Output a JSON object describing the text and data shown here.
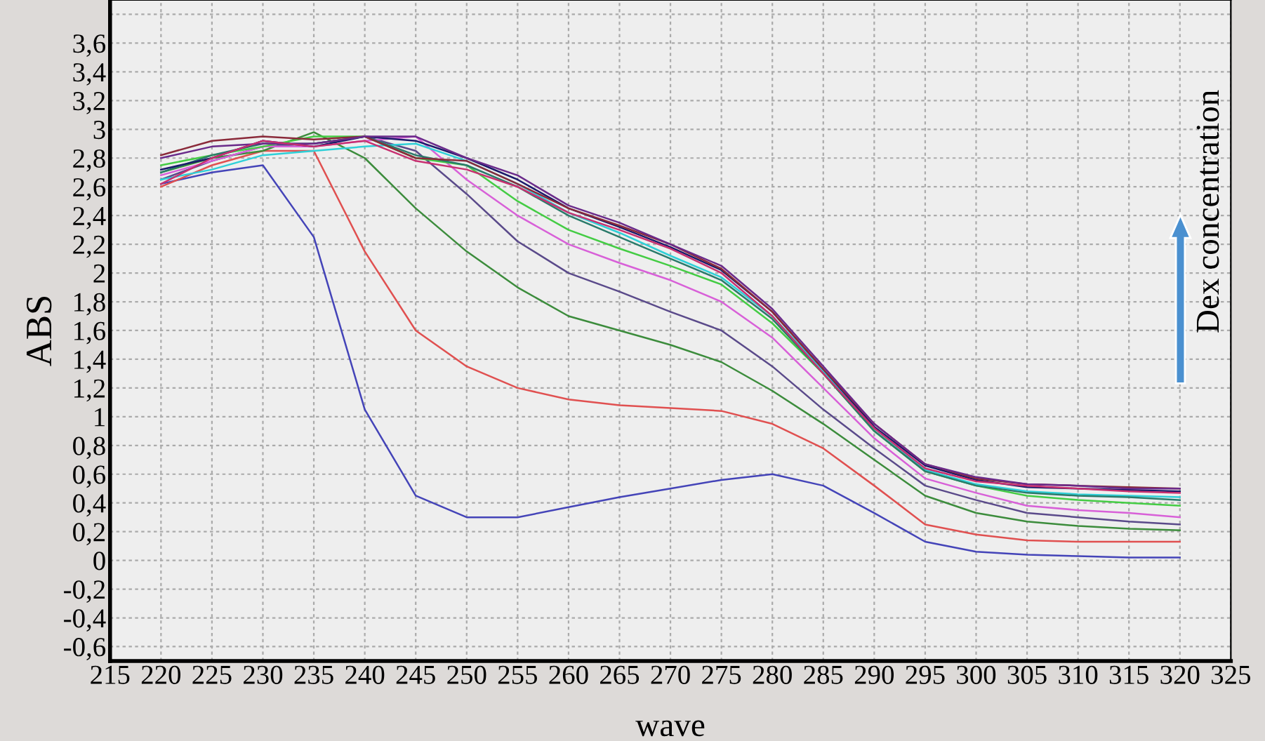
{
  "chart_data": {
    "type": "line",
    "xlabel": "wave",
    "ylabel": "ABS",
    "annotations": [
      "Dex concentration"
    ],
    "x": [
      220,
      225,
      230,
      235,
      240,
      245,
      250,
      255,
      260,
      265,
      270,
      275,
      280,
      285,
      290,
      295,
      300,
      305,
      310,
      315,
      320
    ],
    "xlim": [
      215,
      325
    ],
    "xticks": [
      215,
      220,
      225,
      230,
      235,
      240,
      245,
      250,
      255,
      260,
      265,
      270,
      275,
      280,
      285,
      290,
      295,
      300,
      305,
      310,
      315,
      320,
      325
    ],
    "ylim": [
      -0.7,
      3.9
    ],
    "yticks": [
      {
        "value": -0.6,
        "label": "-0,6"
      },
      {
        "value": -0.4,
        "label": "-0,4"
      },
      {
        "value": -0.2,
        "label": "-0,2"
      },
      0,
      {
        "value": 0.2,
        "label": "0,2"
      },
      {
        "value": 0.4,
        "label": "0,4"
      },
      {
        "value": 0.6,
        "label": "0,6"
      },
      {
        "value": 0.8,
        "label": "0,8"
      },
      1,
      {
        "value": 1.2,
        "label": "1,2"
      },
      {
        "value": 1.4,
        "label": "1,4"
      },
      {
        "value": 1.6,
        "label": "1,6"
      },
      {
        "value": 1.8,
        "label": "1,8"
      },
      2,
      {
        "value": 2.2,
        "label": "2,2"
      },
      {
        "value": 2.4,
        "label": "2,4"
      },
      {
        "value": 2.6,
        "label": "2,6"
      },
      {
        "value": 2.8,
        "label": "2,8"
      },
      3,
      {
        "value": 3.2,
        "label": "3,2"
      },
      {
        "value": 3.4,
        "label": "3,4"
      },
      {
        "value": 3.6,
        "label": "3,6"
      },
      {
        "value": 3.8,
        "label": null
      }
    ],
    "grid": true,
    "line_style": "solid",
    "marker": "none",
    "legend": false,
    "series": [
      {
        "color": "#4444b8",
        "values": [
          2.62,
          2.7,
          2.75,
          2.25,
          1.05,
          0.45,
          0.3,
          0.3,
          0.37,
          0.44,
          0.5,
          0.56,
          0.6,
          0.52,
          0.33,
          0.13,
          0.06,
          0.04,
          0.03,
          0.02,
          0.02
        ]
      },
      {
        "color": "#e05050",
        "values": [
          2.6,
          2.75,
          2.85,
          2.85,
          2.15,
          1.6,
          1.35,
          1.2,
          1.12,
          1.08,
          1.06,
          1.04,
          0.95,
          0.78,
          0.52,
          0.25,
          0.18,
          0.14,
          0.13,
          0.13,
          0.13
        ]
      },
      {
        "color": "#3c8c3c",
        "values": [
          2.7,
          2.8,
          2.85,
          2.98,
          2.8,
          2.45,
          2.15,
          1.9,
          1.7,
          1.6,
          1.5,
          1.38,
          1.18,
          0.95,
          0.7,
          0.45,
          0.33,
          0.27,
          0.24,
          0.22,
          0.21
        ]
      },
      {
        "color": "#5a4a8a",
        "values": [
          2.65,
          2.78,
          2.88,
          2.9,
          2.95,
          2.85,
          2.55,
          2.22,
          2.0,
          1.87,
          1.73,
          1.6,
          1.35,
          1.05,
          0.78,
          0.52,
          0.42,
          0.33,
          0.3,
          0.27,
          0.25
        ]
      },
      {
        "color": "#d860d8",
        "values": [
          2.68,
          2.78,
          2.88,
          2.88,
          2.92,
          2.95,
          2.65,
          2.4,
          2.2,
          2.07,
          1.95,
          1.8,
          1.55,
          1.2,
          0.85,
          0.57,
          0.47,
          0.38,
          0.35,
          0.33,
          0.3
        ]
      },
      {
        "color": "#44cc44",
        "values": [
          2.75,
          2.82,
          2.88,
          2.95,
          2.95,
          2.8,
          2.75,
          2.5,
          2.3,
          2.17,
          2.05,
          1.92,
          1.65,
          1.3,
          0.9,
          0.62,
          0.52,
          0.45,
          0.42,
          0.4,
          0.38
        ]
      },
      {
        "color": "#2ed0d8",
        "values": [
          2.65,
          2.72,
          2.82,
          2.85,
          2.88,
          2.9,
          2.78,
          2.62,
          2.42,
          2.28,
          2.12,
          1.97,
          1.7,
          1.32,
          0.92,
          0.63,
          0.53,
          0.48,
          0.46,
          0.45,
          0.44
        ]
      },
      {
        "color": "#2a7a6a",
        "values": [
          2.7,
          2.82,
          2.9,
          2.9,
          2.95,
          2.82,
          2.75,
          2.6,
          2.4,
          2.25,
          2.1,
          1.95,
          1.68,
          1.3,
          0.9,
          0.62,
          0.52,
          0.47,
          0.45,
          0.44,
          0.42
        ]
      },
      {
        "color": "#1a1a6a",
        "values": [
          2.72,
          2.8,
          2.92,
          2.88,
          2.95,
          2.92,
          2.8,
          2.65,
          2.45,
          2.32,
          2.18,
          2.02,
          1.73,
          1.33,
          0.93,
          0.66,
          0.56,
          0.51,
          0.5,
          0.49,
          0.48
        ]
      },
      {
        "color": "#8a2a3a",
        "values": [
          2.82,
          2.92,
          2.95,
          2.93,
          2.95,
          2.8,
          2.78,
          2.62,
          2.45,
          2.33,
          2.2,
          2.03,
          1.73,
          1.33,
          0.95,
          0.67,
          0.57,
          0.53,
          0.52,
          0.51,
          0.5
        ]
      },
      {
        "color": "#6a2a8a",
        "values": [
          2.8,
          2.88,
          2.9,
          2.9,
          2.95,
          2.95,
          2.8,
          2.68,
          2.47,
          2.35,
          2.2,
          2.05,
          1.75,
          1.35,
          0.95,
          0.67,
          0.58,
          0.53,
          0.52,
          0.5,
          0.5
        ]
      },
      {
        "color": "#c83070",
        "values": [
          2.62,
          2.8,
          2.92,
          2.88,
          2.92,
          2.78,
          2.72,
          2.6,
          2.42,
          2.3,
          2.17,
          2.0,
          1.7,
          1.3,
          0.92,
          0.64,
          0.55,
          0.52,
          0.5,
          0.48,
          0.47
        ]
      }
    ]
  }
}
